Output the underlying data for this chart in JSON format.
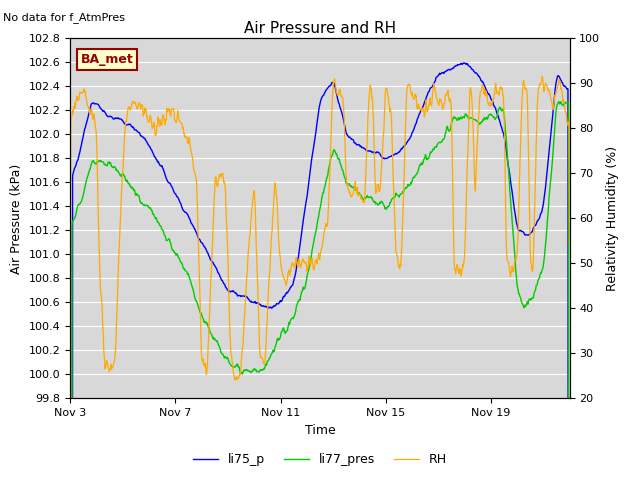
{
  "title": "Air Pressure and RH",
  "top_left_text": "No data for f_AtmPres",
  "xlabel": "Time",
  "ylabel_left": "Air Pressure (kPa)",
  "ylabel_right": "Relativity Humidity (%)",
  "ylim_left": [
    99.8,
    102.8
  ],
  "ylim_right": [
    20,
    100
  ],
  "yticks_left": [
    99.8,
    100.0,
    100.2,
    100.4,
    100.6,
    100.8,
    101.0,
    101.2,
    101.4,
    101.6,
    101.8,
    102.0,
    102.2,
    102.4,
    102.6,
    102.8
  ],
  "yticks_right": [
    20,
    30,
    40,
    50,
    60,
    70,
    80,
    90,
    100
  ],
  "xtick_labels": [
    "Nov 3",
    "Nov 7",
    "Nov 11",
    "Nov 15",
    "Nov 19"
  ],
  "xtick_positions": [
    0,
    4,
    8,
    12,
    16
  ],
  "xlim": [
    0,
    19
  ],
  "color_li75": "#0000ff",
  "color_li77": "#00cc00",
  "color_rh": "#ffaa00",
  "bg_color": "#d8d8d8",
  "grid_color": "#ffffff",
  "legend_labels": [
    "li75_p",
    "li77_pres",
    "RH"
  ],
  "box_label": "BA_met",
  "box_color": "#990000",
  "box_bg": "#ffffcc",
  "title_fontsize": 11,
  "label_fontsize": 9,
  "tick_fontsize": 8
}
